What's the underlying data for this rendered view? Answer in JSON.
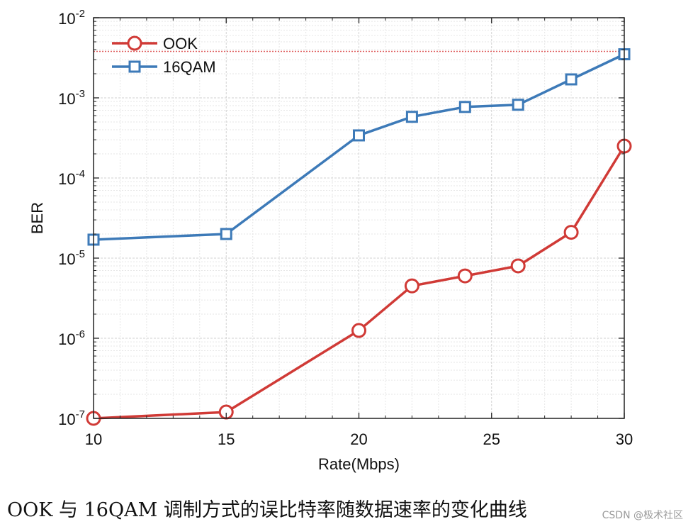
{
  "chart_data": {
    "type": "line",
    "x_scale": "linear",
    "y_scale": "log",
    "xlabel": "Rate(Mbps)",
    "ylabel": "BER",
    "xlim": [
      10,
      30
    ],
    "ylim": [
      1e-07,
      0.01
    ],
    "x_ticks": [
      10,
      15,
      20,
      25,
      30
    ],
    "y_ticks": [
      {
        "base": "10",
        "exp": "-7",
        "value": 1e-07
      },
      {
        "base": "10",
        "exp": "-6",
        "value": 1e-06
      },
      {
        "base": "10",
        "exp": "-5",
        "value": 1e-05
      },
      {
        "base": "10",
        "exp": "-4",
        "value": 0.0001
      },
      {
        "base": "10",
        "exp": "-3",
        "value": 0.001
      },
      {
        "base": "10",
        "exp": "-2",
        "value": 0.01
      }
    ],
    "grid": true,
    "legend_position": "top-left",
    "threshold": {
      "value": 0.0038,
      "color": "#e06060",
      "style": "dotted"
    },
    "series": [
      {
        "name": "OOK",
        "color": "#d03a36",
        "marker": "circle",
        "x": [
          10,
          15,
          20,
          22,
          24,
          26,
          28,
          30
        ],
        "y": [
          1e-07,
          1.2e-07,
          1.25e-06,
          4.5e-06,
          6e-06,
          8e-06,
          2.1e-05,
          0.00025
        ]
      },
      {
        "name": "16QAM",
        "color": "#3d7ab8",
        "marker": "square",
        "x": [
          10,
          15,
          20,
          22,
          24,
          26,
          28,
          30
        ],
        "y": [
          1.7e-05,
          2e-05,
          0.00034,
          0.00058,
          0.00077,
          0.00082,
          0.0017,
          0.0035
        ]
      }
    ]
  },
  "caption": "OOK 与 16QAM 调制方式的误比特率随数据速率的变化曲线",
  "watermark": "CSDN @极术社区"
}
